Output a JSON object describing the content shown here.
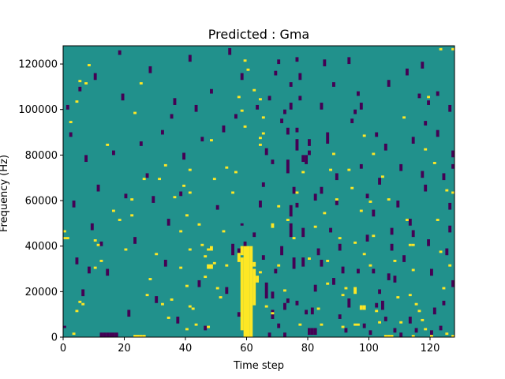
{
  "chart_data": {
    "type": "heatmap",
    "title": "Predicted : Gma",
    "xlabel": "Time step",
    "ylabel": "Frequency (Hz)",
    "xlim": [
      0,
      128
    ],
    "ylim": [
      0,
      128000
    ],
    "x_ticks": [
      0,
      20,
      40,
      60,
      80,
      100,
      120
    ],
    "y_ticks": [
      0,
      20000,
      40000,
      60000,
      80000,
      100000,
      120000
    ],
    "grid": false,
    "legend": "none",
    "colors": {
      "background": "#21918c",
      "low": "#440154",
      "high": "#fde725",
      "frame": "#000000"
    },
    "high_cells": [
      [
        57,
        33,
        37
      ],
      [
        58,
        3,
        35
      ],
      [
        58,
        36,
        40
      ],
      [
        59,
        0,
        40
      ],
      [
        60,
        0,
        40
      ],
      [
        61,
        0,
        40
      ],
      [
        62,
        14,
        30
      ],
      [
        62,
        31,
        33
      ],
      [
        63,
        24,
        27
      ],
      [
        23,
        0,
        1
      ],
      [
        24,
        0,
        1
      ],
      [
        25,
        0,
        1
      ],
      [
        26,
        0,
        1
      ],
      [
        47,
        30,
        32
      ],
      [
        48,
        30,
        32
      ],
      [
        46,
        35,
        36
      ],
      [
        47,
        38,
        39
      ],
      [
        48,
        38,
        40
      ],
      [
        97,
        12,
        14
      ],
      [
        98,
        12,
        14
      ],
      [
        95,
        19,
        22
      ],
      [
        105,
        0,
        1
      ],
      [
        106,
        0,
        1
      ],
      [
        107,
        0,
        1
      ],
      [
        114,
        0,
        1
      ],
      [
        0,
        43,
        44
      ],
      [
        1,
        43,
        44
      ],
      [
        0,
        46,
        47
      ],
      [
        64,
        28,
        29
      ],
      [
        64,
        84,
        85
      ],
      [
        65,
        89,
        90
      ],
      [
        64,
        87,
        88
      ],
      [
        95,
        5,
        6
      ],
      [
        96,
        5,
        6
      ],
      [
        103,
        6,
        7
      ],
      [
        113,
        40,
        41
      ],
      [
        114,
        40,
        41
      ],
      [
        113,
        18,
        19
      ],
      [
        3,
        1,
        2
      ],
      [
        4,
        11,
        12
      ],
      [
        5,
        15,
        16
      ],
      [
        6,
        14,
        15
      ],
      [
        2,
        94,
        95
      ],
      [
        4,
        103,
        104
      ],
      [
        5,
        112,
        113
      ],
      [
        7,
        111,
        112
      ],
      [
        8,
        119,
        120
      ],
      [
        10,
        30,
        31
      ],
      [
        10,
        42,
        43
      ],
      [
        11,
        40,
        41
      ],
      [
        12,
        33,
        34
      ],
      [
        14,
        84,
        85
      ],
      [
        16,
        55,
        56
      ],
      [
        18,
        51,
        52
      ],
      [
        20,
        38,
        39
      ],
      [
        22,
        53,
        54
      ],
      [
        22,
        60,
        61
      ],
      [
        23,
        98,
        99
      ],
      [
        25,
        111,
        112
      ],
      [
        26,
        69,
        70
      ],
      [
        27,
        18,
        19
      ],
      [
        28,
        25,
        26
      ],
      [
        30,
        36,
        37
      ],
      [
        31,
        69,
        70
      ],
      [
        32,
        14,
        15
      ],
      [
        33,
        75,
        76
      ],
      [
        34,
        8,
        9
      ],
      [
        35,
        16,
        17
      ],
      [
        36,
        61,
        62
      ],
      [
        38,
        30,
        31
      ],
      [
        38,
        46,
        47
      ],
      [
        39,
        66,
        67
      ],
      [
        40,
        3,
        4
      ],
      [
        40,
        22,
        23
      ],
      [
        40,
        53,
        54
      ],
      [
        41,
        13,
        14
      ],
      [
        41,
        38,
        39
      ],
      [
        41,
        63,
        64
      ],
      [
        41,
        73,
        74
      ],
      [
        42,
        12,
        13
      ],
      [
        43,
        5,
        6
      ],
      [
        44,
        49,
        50
      ],
      [
        45,
        40,
        41
      ],
      [
        46,
        26,
        27
      ],
      [
        47,
        4,
        5
      ],
      [
        48,
        86,
        87
      ],
      [
        49,
        32,
        33
      ],
      [
        49,
        69,
        70
      ],
      [
        50,
        21,
        22
      ],
      [
        51,
        17,
        18
      ],
      [
        52,
        46,
        47
      ],
      [
        53,
        74,
        75
      ],
      [
        53,
        31,
        32
      ],
      [
        55,
        63,
        64
      ],
      [
        56,
        72,
        73
      ],
      [
        57,
        105,
        106
      ],
      [
        58,
        99,
        100
      ],
      [
        59,
        92,
        93
      ],
      [
        59,
        121,
        122
      ],
      [
        60,
        117,
        118
      ],
      [
        62,
        108,
        109
      ],
      [
        64,
        104,
        105
      ],
      [
        65,
        96,
        97
      ],
      [
        66,
        13,
        14
      ],
      [
        68,
        10,
        11
      ],
      [
        70,
        31,
        32
      ],
      [
        70,
        57,
        58
      ],
      [
        72,
        20,
        21
      ],
      [
        73,
        51,
        52
      ],
      [
        75,
        43,
        44
      ],
      [
        76,
        63,
        64
      ],
      [
        77,
        5,
        6
      ],
      [
        78,
        72,
        73
      ],
      [
        80,
        34,
        35
      ],
      [
        82,
        48,
        49
      ],
      [
        83,
        12,
        13
      ],
      [
        85,
        54,
        55
      ],
      [
        86,
        23,
        24
      ],
      [
        86,
        33,
        34
      ],
      [
        88,
        80,
        81
      ],
      [
        89,
        60,
        61
      ],
      [
        90,
        43,
        44
      ],
      [
        91,
        4,
        5
      ],
      [
        91,
        18,
        19
      ],
      [
        92,
        21,
        22
      ],
      [
        93,
        73,
        74
      ],
      [
        94,
        65,
        66
      ],
      [
        95,
        41,
        42
      ],
      [
        97,
        55,
        56
      ],
      [
        98,
        36,
        37
      ],
      [
        98,
        88,
        89
      ],
      [
        100,
        31,
        32
      ],
      [
        100,
        59,
        60
      ],
      [
        101,
        44,
        45
      ],
      [
        102,
        11,
        12
      ],
      [
        104,
        70,
        71
      ],
      [
        106,
        60,
        61
      ],
      [
        108,
        33,
        34
      ],
      [
        109,
        17,
        18
      ],
      [
        110,
        6,
        7
      ],
      [
        111,
        96,
        97
      ],
      [
        112,
        51,
        52
      ],
      [
        114,
        29,
        30
      ],
      [
        115,
        14,
        15
      ],
      [
        116,
        11,
        12
      ],
      [
        117,
        7,
        8
      ],
      [
        118,
        3,
        4
      ],
      [
        118,
        82,
        83
      ],
      [
        119,
        105,
        106
      ],
      [
        120,
        0,
        1
      ],
      [
        121,
        76,
        77
      ],
      [
        122,
        51,
        52
      ],
      [
        123,
        37,
        38
      ],
      [
        123,
        126,
        127
      ],
      [
        124,
        21,
        22
      ],
      [
        125,
        1,
        2
      ],
      [
        125,
        64,
        65
      ],
      [
        126,
        31,
        32
      ],
      [
        127,
        0,
        1
      ],
      [
        127,
        63,
        64
      ],
      [
        127,
        126,
        127
      ],
      [
        101,
        80,
        81
      ],
      [
        84,
        5,
        6
      ],
      [
        87,
        73,
        74
      ],
      [
        68,
        48,
        50
      ]
    ],
    "low_cells": [
      [
        65,
        34,
        36
      ],
      [
        66,
        17,
        24
      ],
      [
        67,
        0,
        2
      ],
      [
        68,
        8,
        12
      ],
      [
        68,
        17,
        20
      ],
      [
        69,
        28,
        30
      ],
      [
        68,
        76,
        78
      ],
      [
        70,
        4,
        6
      ],
      [
        71,
        36,
        40
      ],
      [
        72,
        0,
        2
      ],
      [
        72,
        12,
        15
      ],
      [
        73,
        15,
        17
      ],
      [
        74,
        44,
        50
      ],
      [
        74,
        53,
        58
      ],
      [
        73,
        72,
        78
      ],
      [
        74,
        100,
        103
      ],
      [
        74,
        110,
        112
      ],
      [
        75,
        30,
        35
      ],
      [
        76,
        14,
        16
      ],
      [
        76,
        57,
        59
      ],
      [
        76,
        82,
        87
      ],
      [
        78,
        44,
        48
      ],
      [
        78,
        77,
        80
      ],
      [
        79,
        76,
        80
      ],
      [
        80,
        1,
        4
      ],
      [
        81,
        1,
        4
      ],
      [
        82,
        1,
        4
      ],
      [
        81,
        10,
        13
      ],
      [
        84,
        31,
        34
      ],
      [
        80,
        84,
        87
      ],
      [
        76,
        90,
        92
      ],
      [
        77,
        104,
        106
      ],
      [
        76,
        121,
        123
      ],
      [
        78,
        31,
        35
      ],
      [
        59,
        39,
        42
      ],
      [
        57,
        37,
        39
      ],
      [
        62,
        44,
        46
      ],
      [
        58,
        49,
        50
      ],
      [
        55,
        36,
        41
      ],
      [
        13,
        0,
        2
      ],
      [
        14,
        0,
        2
      ],
      [
        15,
        0,
        2
      ],
      [
        16,
        0,
        2
      ],
      [
        12,
        0,
        2
      ],
      [
        17,
        0,
        2
      ],
      [
        80,
        80,
        82
      ],
      [
        82,
        20,
        23
      ],
      [
        84,
        63,
        66
      ],
      [
        86,
        85,
        90
      ],
      [
        88,
        23,
        26
      ],
      [
        89,
        58,
        60
      ],
      [
        90,
        8,
        10
      ],
      [
        92,
        2,
        4
      ],
      [
        93,
        13,
        17
      ],
      [
        95,
        98,
        100
      ],
      [
        96,
        28,
        30
      ],
      [
        97,
        100,
        103
      ],
      [
        98,
        4,
        6
      ],
      [
        99,
        61,
        63
      ],
      [
        100,
        1,
        3
      ],
      [
        101,
        28,
        30
      ],
      [
        102,
        13,
        15
      ],
      [
        103,
        19,
        21
      ],
      [
        104,
        12,
        16
      ],
      [
        105,
        7,
        9
      ],
      [
        106,
        25,
        28
      ],
      [
        107,
        45,
        48
      ],
      [
        108,
        2,
        4
      ],
      [
        110,
        0,
        2
      ],
      [
        113,
        6,
        9
      ],
      [
        114,
        44,
        47
      ],
      [
        115,
        2,
        4
      ],
      [
        117,
        70,
        73
      ],
      [
        118,
        93,
        95
      ],
      [
        119,
        102,
        104
      ],
      [
        120,
        1,
        3
      ],
      [
        122,
        106,
        108
      ],
      [
        123,
        3,
        5
      ],
      [
        124,
        14,
        16
      ],
      [
        125,
        36,
        39
      ],
      [
        126,
        56,
        59
      ],
      [
        127,
        22,
        25
      ],
      [
        127,
        74,
        76
      ],
      [
        127,
        79,
        82
      ],
      [
        0,
        4,
        5
      ],
      [
        1,
        100,
        102
      ],
      [
        2,
        88,
        90
      ],
      [
        3,
        57,
        60
      ],
      [
        4,
        32,
        35
      ],
      [
        5,
        108,
        110
      ],
      [
        6,
        18,
        21
      ],
      [
        7,
        77,
        80
      ],
      [
        8,
        28,
        31
      ],
      [
        9,
        47,
        50
      ],
      [
        10,
        113,
        116
      ],
      [
        11,
        64,
        67
      ],
      [
        12,
        40,
        42
      ],
      [
        14,
        27,
        30
      ],
      [
        16,
        80,
        82
      ],
      [
        18,
        124,
        126
      ],
      [
        19,
        104,
        107
      ],
      [
        20,
        61,
        63
      ],
      [
        21,
        9,
        12
      ],
      [
        23,
        41,
        44
      ],
      [
        25,
        84,
        86
      ],
      [
        27,
        70,
        72
      ],
      [
        28,
        116,
        119
      ],
      [
        29,
        59,
        62
      ],
      [
        30,
        15,
        18
      ],
      [
        32,
        89,
        91
      ],
      [
        33,
        31,
        34
      ],
      [
        34,
        49,
        52
      ],
      [
        35,
        96,
        98
      ],
      [
        36,
        102,
        105
      ],
      [
        37,
        6,
        9
      ],
      [
        38,
        62,
        64
      ],
      [
        39,
        78,
        81
      ],
      [
        41,
        121,
        124
      ],
      [
        43,
        99,
        102
      ],
      [
        44,
        22,
        25
      ],
      [
        45,
        86,
        88
      ],
      [
        46,
        3,
        5
      ],
      [
        48,
        107,
        109
      ],
      [
        50,
        56,
        58
      ],
      [
        52,
        90,
        93
      ],
      [
        53,
        19,
        22
      ],
      [
        54,
        124,
        127
      ],
      [
        56,
        96,
        98
      ],
      [
        57,
        9,
        11
      ],
      [
        58,
        113,
        116
      ],
      [
        63,
        100,
        102
      ],
      [
        64,
        57,
        60
      ],
      [
        65,
        66,
        68
      ],
      [
        66,
        80,
        83
      ],
      [
        67,
        104,
        106
      ],
      [
        69,
        115,
        117
      ],
      [
        70,
        120,
        122
      ],
      [
        71,
        94,
        96
      ],
      [
        72,
        98,
        100
      ],
      [
        73,
        89,
        92
      ],
      [
        75,
        63,
        66
      ],
      [
        77,
        113,
        116
      ],
      [
        79,
        10,
        12
      ],
      [
        82,
        60,
        63
      ],
      [
        83,
        36,
        39
      ],
      [
        84,
        100,
        103
      ],
      [
        85,
        119,
        122
      ],
      [
        87,
        46,
        48
      ],
      [
        88,
        110,
        112
      ],
      [
        89,
        69,
        72
      ],
      [
        90,
        38,
        41
      ],
      [
        91,
        28,
        31
      ],
      [
        93,
        120,
        123
      ],
      [
        94,
        94,
        96
      ],
      [
        96,
        106,
        108
      ],
      [
        97,
        74,
        76
      ],
      [
        99,
        42,
        45
      ],
      [
        101,
        53,
        56
      ],
      [
        102,
        88,
        90
      ],
      [
        103,
        67,
        70
      ],
      [
        105,
        82,
        85
      ],
      [
        106,
        110,
        113
      ],
      [
        107,
        38,
        41
      ],
      [
        108,
        24,
        27
      ],
      [
        109,
        57,
        60
      ],
      [
        110,
        73,
        76
      ],
      [
        111,
        33,
        36
      ],
      [
        112,
        115,
        118
      ],
      [
        113,
        49,
        52
      ],
      [
        114,
        85,
        88
      ],
      [
        116,
        105,
        107
      ],
      [
        117,
        118,
        121
      ],
      [
        118,
        64,
        67
      ],
      [
        119,
        40,
        43
      ],
      [
        120,
        27,
        30
      ],
      [
        121,
        10,
        13
      ],
      [
        122,
        88,
        91
      ],
      [
        124,
        69,
        72
      ],
      [
        126,
        46,
        49
      ],
      [
        126,
        99,
        102
      ]
    ]
  }
}
